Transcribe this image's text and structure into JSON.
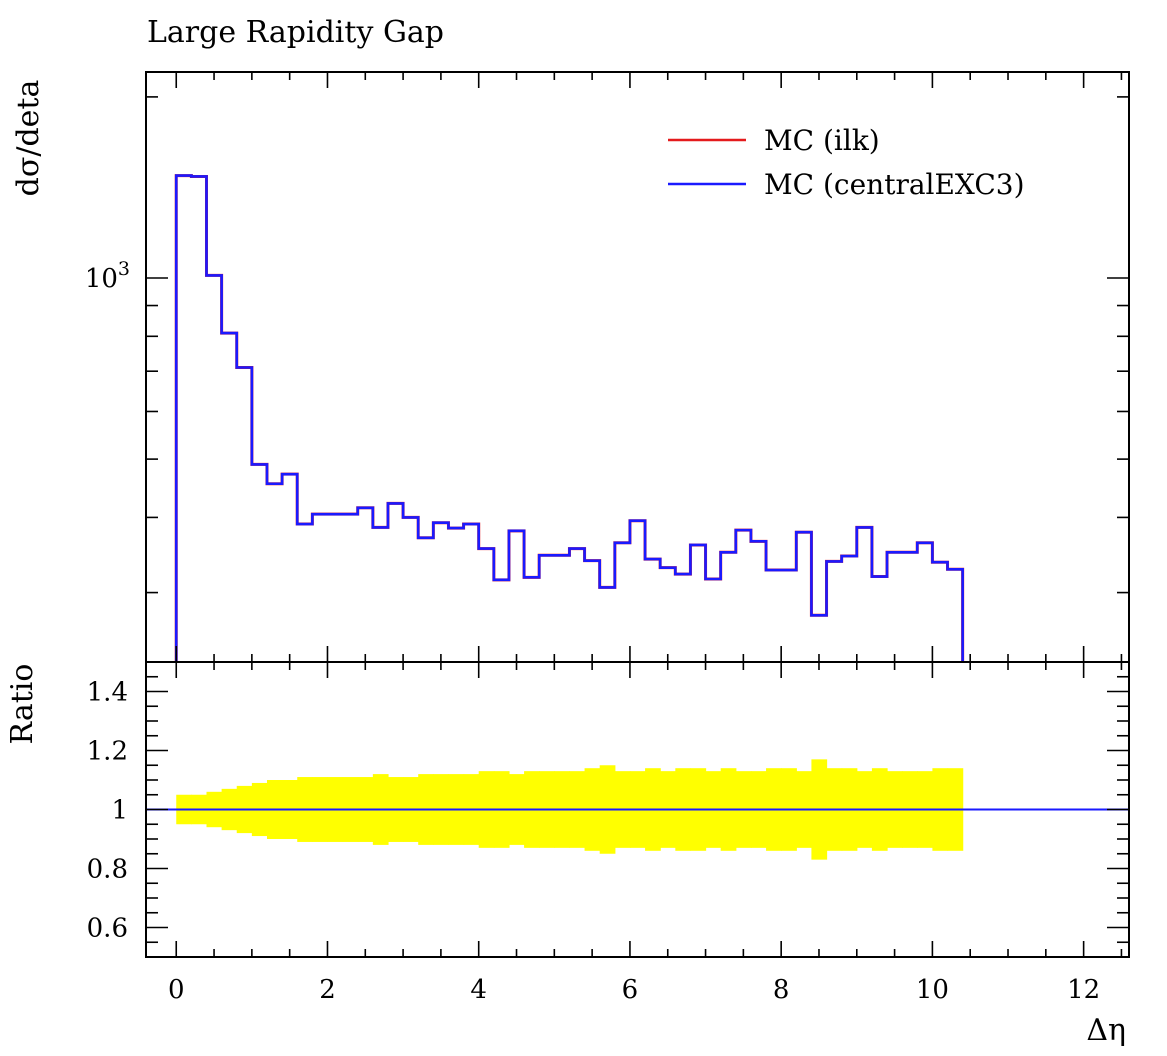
{
  "chart_data": [
    {
      "type": "line",
      "panel": "main",
      "title": "Large Rapidity Gap",
      "ylabel": "dσ/deta",
      "yscale": "log",
      "ylim": [
        230,
        2200
      ],
      "xlim": [
        -0.4,
        12.6
      ],
      "y_tick_labels": [
        {
          "value": 1000,
          "base": "10",
          "exp": "3"
        }
      ],
      "legend": {
        "placement": "top-right",
        "entries": [
          "MC (ilk)",
          "MC (centralEXC3)"
        ]
      },
      "bin_edges": [
        0,
        0.2,
        0.4,
        0.6,
        0.8,
        1.0,
        1.2,
        1.4,
        1.6,
        1.8,
        2.0,
        2.2,
        2.4,
        2.6,
        2.8,
        3.0,
        3.2,
        3.4,
        3.6,
        3.8,
        4.0,
        4.2,
        4.4,
        4.6,
        4.8,
        5.0,
        5.2,
        5.4,
        5.6,
        5.8,
        6.0,
        6.2,
        6.4,
        6.6,
        6.8,
        7.0,
        7.2,
        7.4,
        7.6,
        7.8,
        8.0,
        8.2,
        8.4,
        8.6,
        8.8,
        9.0,
        9.2,
        9.4,
        9.6,
        9.8,
        10.0,
        10.2,
        10.4
      ],
      "series": [
        {
          "name": "MC (ilk)",
          "color": "#e41a1c",
          "values": [
            1480,
            1475,
            1010,
            810,
            710,
            490,
            455,
            472,
            390,
            405,
            405,
            405,
            415,
            385,
            422,
            400,
            370,
            392,
            384,
            390,
            355,
            315,
            380,
            318,
            346,
            346,
            355,
            339,
            306,
            363,
            395,
            341,
            330,
            322,
            360,
            316,
            350,
            381,
            365,
            327,
            327,
            378,
            275,
            338,
            345,
            385,
            319,
            350,
            350,
            363,
            337,
            328
          ]
        },
        {
          "name": "MC (centralEXC3)",
          "color": "#1a1aff",
          "values": [
            1480,
            1475,
            1010,
            810,
            710,
            490,
            455,
            472,
            390,
            405,
            405,
            405,
            415,
            385,
            422,
            400,
            370,
            392,
            384,
            390,
            355,
            315,
            380,
            318,
            346,
            346,
            355,
            339,
            306,
            363,
            395,
            341,
            330,
            322,
            360,
            316,
            350,
            381,
            365,
            327,
            327,
            378,
            275,
            338,
            345,
            385,
            319,
            350,
            350,
            363,
            337,
            328
          ]
        }
      ]
    },
    {
      "type": "area",
      "panel": "ratio",
      "xlabel": "Δη",
      "ylabel": "Ratio",
      "ylim": [
        0.5,
        1.5
      ],
      "xlim": [
        -0.4,
        12.6
      ],
      "x_ticks": [
        0,
        2,
        4,
        6,
        8,
        10,
        12
      ],
      "y_ticks": [
        0.6,
        0.8,
        1,
        1.2,
        1.4
      ],
      "ratio_line": {
        "value": 1.0,
        "color": "#1a1aff"
      },
      "band": {
        "color": "#ffff00",
        "bin_edges": [
          0,
          0.2,
          0.4,
          0.6,
          0.8,
          1.0,
          1.2,
          1.4,
          1.6,
          1.8,
          2.0,
          2.2,
          2.4,
          2.6,
          2.8,
          3.0,
          3.2,
          3.4,
          3.6,
          3.8,
          4.0,
          4.2,
          4.4,
          4.6,
          4.8,
          5.0,
          5.2,
          5.4,
          5.6,
          5.8,
          6.0,
          6.2,
          6.4,
          6.6,
          6.8,
          7.0,
          7.2,
          7.4,
          7.6,
          7.8,
          8.0,
          8.2,
          8.4,
          8.6,
          8.8,
          9.0,
          9.2,
          9.4,
          9.6,
          9.8,
          10.0,
          10.2,
          10.4
        ],
        "upper": [
          1.05,
          1.05,
          1.06,
          1.07,
          1.08,
          1.09,
          1.1,
          1.1,
          1.11,
          1.11,
          1.11,
          1.11,
          1.11,
          1.12,
          1.11,
          1.11,
          1.12,
          1.12,
          1.12,
          1.12,
          1.13,
          1.13,
          1.12,
          1.13,
          1.13,
          1.13,
          1.13,
          1.14,
          1.15,
          1.13,
          1.13,
          1.14,
          1.13,
          1.14,
          1.14,
          1.13,
          1.14,
          1.13,
          1.13,
          1.14,
          1.14,
          1.13,
          1.17,
          1.14,
          1.14,
          1.13,
          1.14,
          1.13,
          1.13,
          1.13,
          1.14,
          1.14
        ],
        "lower": [
          0.95,
          0.95,
          0.94,
          0.93,
          0.92,
          0.91,
          0.9,
          0.9,
          0.89,
          0.89,
          0.89,
          0.89,
          0.89,
          0.88,
          0.89,
          0.89,
          0.88,
          0.88,
          0.88,
          0.88,
          0.87,
          0.87,
          0.88,
          0.87,
          0.87,
          0.87,
          0.87,
          0.86,
          0.85,
          0.87,
          0.87,
          0.86,
          0.87,
          0.86,
          0.86,
          0.87,
          0.86,
          0.87,
          0.87,
          0.86,
          0.86,
          0.87,
          0.83,
          0.86,
          0.86,
          0.87,
          0.86,
          0.87,
          0.87,
          0.87,
          0.86,
          0.86
        ]
      }
    }
  ]
}
